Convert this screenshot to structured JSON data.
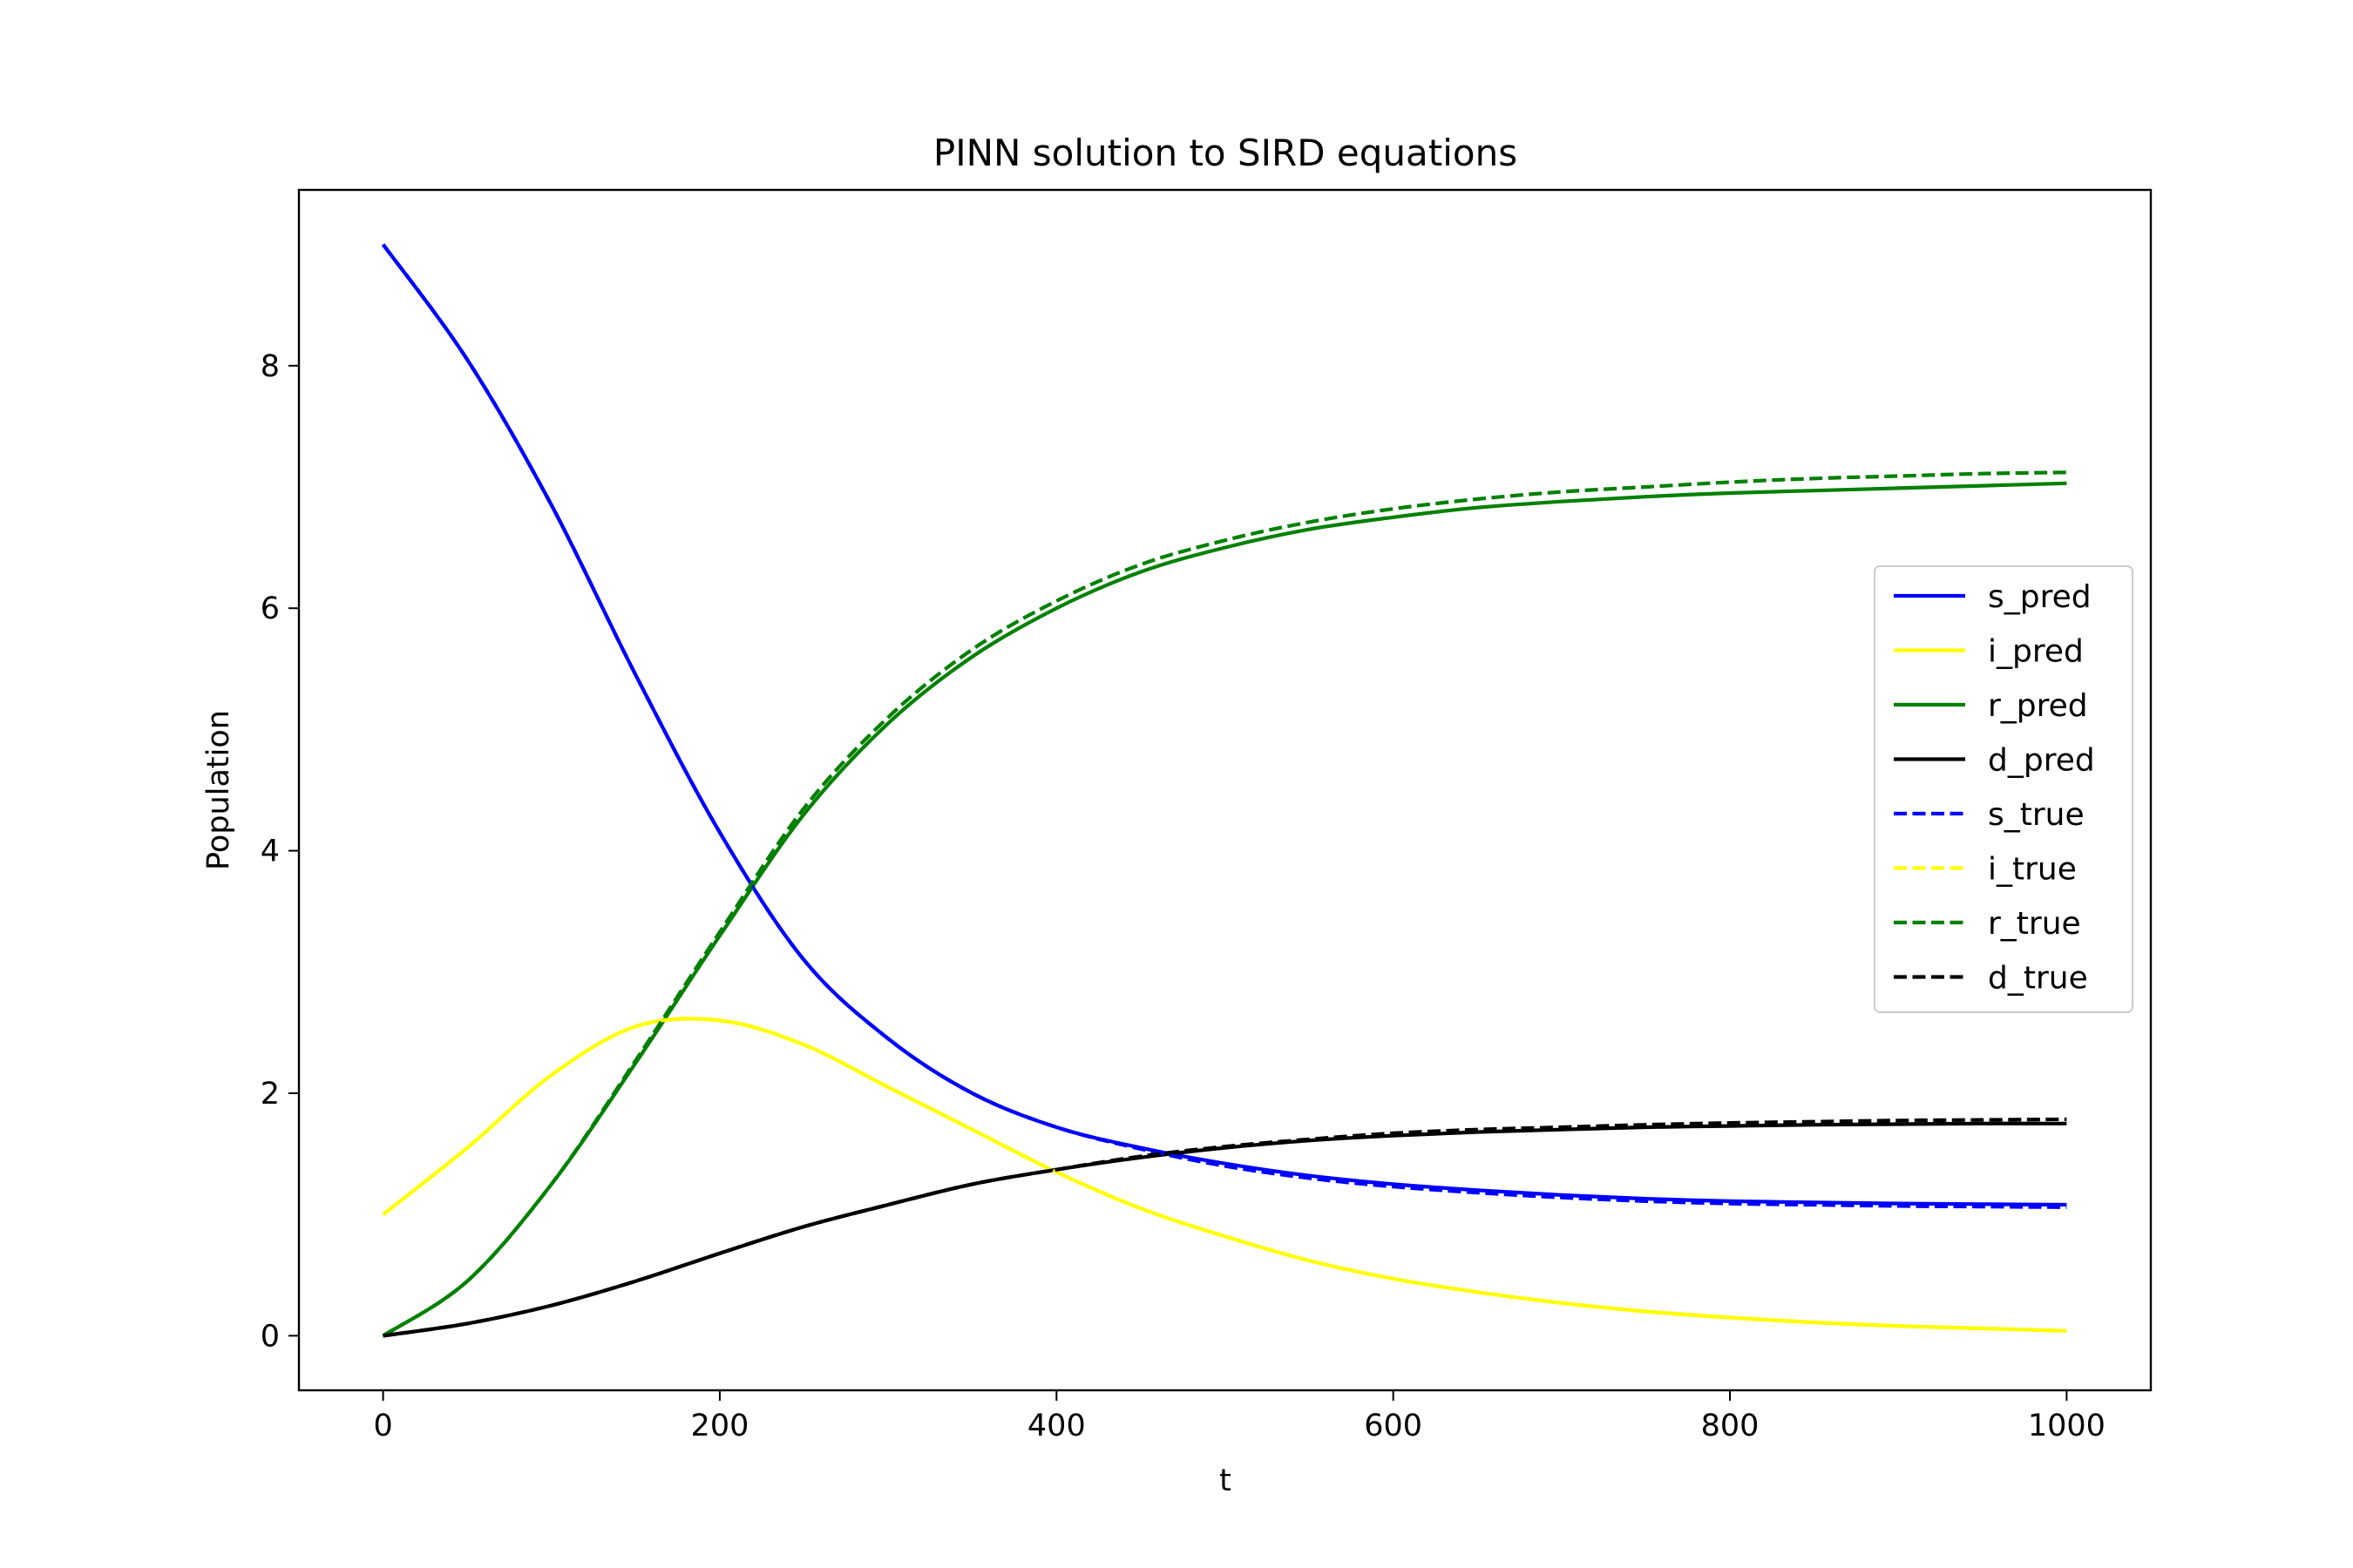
{
  "chart_data": {
    "type": "line",
    "title": "PINN solution to SIRD equations",
    "xlabel": "t",
    "ylabel": "Population",
    "xlim": [
      -50,
      1050
    ],
    "ylim": [
      -0.45,
      9.45
    ],
    "xticks": [
      0,
      200,
      400,
      600,
      800,
      1000
    ],
    "yticks": [
      0,
      2,
      4,
      6,
      8
    ],
    "legend_position": "center-right",
    "grid": false,
    "x": [
      0,
      50,
      100,
      150,
      200,
      250,
      300,
      350,
      400,
      450,
      500,
      550,
      600,
      650,
      700,
      750,
      800,
      850,
      900,
      950,
      1000
    ],
    "series": [
      {
        "name": "s_pred",
        "color": "#0000ff",
        "style": "solid",
        "values": [
          9.0,
          8.05,
          6.85,
          5.45,
          4.15,
          3.1,
          2.45,
          2.0,
          1.72,
          1.55,
          1.42,
          1.32,
          1.25,
          1.2,
          1.16,
          1.13,
          1.11,
          1.1,
          1.09,
          1.085,
          1.08
        ]
      },
      {
        "name": "i_pred",
        "color": "#ffff00",
        "style": "solid",
        "values": [
          1.0,
          1.55,
          2.15,
          2.55,
          2.6,
          2.4,
          2.05,
          1.7,
          1.35,
          1.05,
          0.82,
          0.62,
          0.47,
          0.36,
          0.27,
          0.2,
          0.15,
          0.11,
          0.08,
          0.06,
          0.04
        ]
      },
      {
        "name": "r_pred",
        "color": "#008000",
        "style": "solid",
        "values": [
          0.0,
          0.45,
          1.25,
          2.25,
          3.3,
          4.3,
          5.05,
          5.6,
          6.0,
          6.3,
          6.5,
          6.65,
          6.75,
          6.83,
          6.88,
          6.92,
          6.95,
          6.97,
          6.99,
          7.01,
          7.03
        ]
      },
      {
        "name": "d_pred",
        "color": "#000000",
        "style": "solid",
        "values": [
          0.0,
          0.1,
          0.25,
          0.45,
          0.68,
          0.9,
          1.08,
          1.25,
          1.37,
          1.47,
          1.55,
          1.61,
          1.65,
          1.68,
          1.7,
          1.72,
          1.73,
          1.74,
          1.745,
          1.75,
          1.75
        ]
      },
      {
        "name": "s_true",
        "color": "#0000ff",
        "style": "dashed",
        "values": [
          9.0,
          8.05,
          6.85,
          5.45,
          4.15,
          3.1,
          2.45,
          2.0,
          1.72,
          1.54,
          1.4,
          1.3,
          1.23,
          1.18,
          1.14,
          1.11,
          1.09,
          1.08,
          1.07,
          1.065,
          1.06
        ]
      },
      {
        "name": "i_true",
        "color": "#ffff00",
        "style": "dashed",
        "values": [
          1.0,
          1.55,
          2.15,
          2.55,
          2.6,
          2.4,
          2.05,
          1.7,
          1.35,
          1.05,
          0.82,
          0.62,
          0.47,
          0.36,
          0.27,
          0.2,
          0.15,
          0.11,
          0.08,
          0.06,
          0.04
        ]
      },
      {
        "name": "r_true",
        "color": "#008000",
        "style": "dashed",
        "values": [
          0.0,
          0.45,
          1.25,
          2.27,
          3.33,
          4.35,
          5.1,
          5.66,
          6.06,
          6.36,
          6.56,
          6.71,
          6.82,
          6.9,
          6.96,
          7.0,
          7.04,
          7.07,
          7.09,
          7.11,
          7.12
        ]
      },
      {
        "name": "d_true",
        "color": "#000000",
        "style": "dashed",
        "values": [
          0.0,
          0.1,
          0.25,
          0.45,
          0.68,
          0.9,
          1.08,
          1.25,
          1.37,
          1.48,
          1.56,
          1.62,
          1.67,
          1.7,
          1.72,
          1.74,
          1.755,
          1.765,
          1.775,
          1.78,
          1.785
        ]
      }
    ]
  }
}
